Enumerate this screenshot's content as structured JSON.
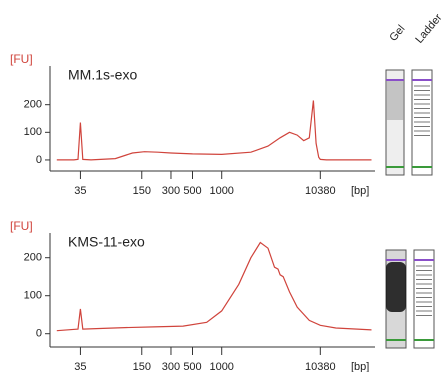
{
  "chart_data": [
    {
      "type": "line",
      "title": "MM.1s-exo",
      "ylabel": "[FU]",
      "xlabel": "[bp]",
      "color": "#d0443c",
      "xscale": "log",
      "x": [
        20,
        30,
        33,
        35,
        37,
        45,
        80,
        120,
        160,
        220,
        300,
        500,
        1000,
        2000,
        3000,
        4000,
        5000,
        6000,
        7000,
        8000,
        8800,
        9400,
        10000,
        10380,
        12000,
        20000,
        35000
      ],
      "values": [
        0,
        0,
        2,
        135,
        2,
        0,
        5,
        25,
        30,
        28,
        25,
        22,
        20,
        28,
        50,
        80,
        100,
        90,
        70,
        80,
        215,
        60,
        10,
        2,
        0,
        0,
        0
      ],
      "xlim": [
        17,
        38000
      ],
      "xticks": [
        35,
        150,
        300,
        500,
        1000,
        10380
      ],
      "ylim": [
        -40,
        340
      ],
      "yticks": [
        0,
        100,
        200
      ]
    },
    {
      "type": "line",
      "title": "KMS-11-exo",
      "ylabel": "[FU]",
      "xlabel": "[bp]",
      "color": "#d0443c",
      "xscale": "log",
      "x": [
        20,
        33,
        35,
        37,
        60,
        100,
        200,
        400,
        700,
        1000,
        1500,
        2000,
        2500,
        3000,
        3500,
        3800,
        4000,
        4300,
        5000,
        6000,
        8000,
        10380,
        15000,
        25000,
        35000
      ],
      "values": [
        8,
        12,
        65,
        12,
        14,
        16,
        18,
        20,
        30,
        60,
        130,
        200,
        240,
        225,
        175,
        170,
        155,
        150,
        110,
        70,
        35,
        22,
        15,
        12,
        10
      ],
      "xlim": [
        17,
        38000
      ],
      "xticks": [
        35,
        150,
        300,
        500,
        1000,
        10380
      ],
      "ylim": [
        -35,
        265
      ],
      "yticks": [
        0,
        100,
        200
      ]
    }
  ],
  "gel_labels": [
    "Gel",
    "Ladder"
  ]
}
